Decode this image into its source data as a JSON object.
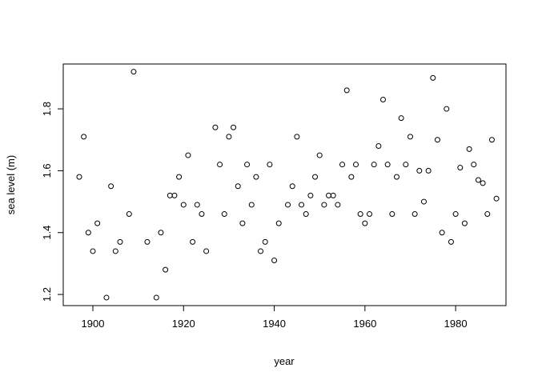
{
  "chart_data": {
    "type": "scatter",
    "x_label": "year",
    "y_label": "sea level (m)",
    "x": [
      1897,
      1898,
      1899,
      1900,
      1901,
      1903,
      1904,
      1905,
      1906,
      1908,
      1909,
      1912,
      1914,
      1915,
      1916,
      1917,
      1918,
      1919,
      1920,
      1921,
      1922,
      1923,
      1924,
      1925,
      1927,
      1928,
      1929,
      1930,
      1931,
      1932,
      1933,
      1934,
      1935,
      1936,
      1937,
      1938,
      1939,
      1940,
      1941,
      1943,
      1944,
      1945,
      1946,
      1947,
      1948,
      1949,
      1950,
      1951,
      1952,
      1953,
      1954,
      1955,
      1956,
      1957,
      1958,
      1959,
      1960,
      1961,
      1962,
      1963,
      1964,
      1965,
      1966,
      1967,
      1968,
      1969,
      1970,
      1971,
      1972,
      1973,
      1974,
      1975,
      1976,
      1977,
      1978,
      1979,
      1980,
      1981,
      1982,
      1983,
      1984,
      1985,
      1986,
      1987,
      1988,
      1989
    ],
    "values": [
      1.58,
      1.71,
      1.4,
      1.34,
      1.43,
      1.19,
      1.55,
      1.34,
      1.37,
      1.46,
      1.92,
      1.37,
      1.19,
      1.4,
      1.28,
      1.52,
      1.52,
      1.58,
      1.49,
      1.65,
      1.37,
      1.49,
      1.46,
      1.34,
      1.74,
      1.62,
      1.46,
      1.71,
      1.74,
      1.55,
      1.43,
      1.62,
      1.49,
      1.58,
      1.34,
      1.37,
      1.62,
      1.31,
      1.43,
      1.49,
      1.55,
      1.71,
      1.49,
      1.46,
      1.52,
      1.58,
      1.65,
      1.49,
      1.52,
      1.52,
      1.49,
      1.62,
      1.86,
      1.58,
      1.62,
      1.46,
      1.43,
      1.46,
      1.62,
      1.68,
      1.83,
      1.62,
      1.46,
      1.58,
      1.77,
      1.62,
      1.71,
      1.46,
      1.6,
      1.5,
      1.6,
      1.9,
      1.7,
      1.4,
      1.8,
      1.37,
      1.46,
      1.61,
      1.43,
      1.67,
      1.62,
      1.57,
      1.56,
      1.46,
      1.7,
      1.51
    ],
    "color": "#000000",
    "xlim": [
      1893.47,
      1991.1
    ],
    "ylim": [
      1.164,
      1.945
    ],
    "xticks": [
      1900,
      1920,
      1940,
      1960,
      1980
    ],
    "yticks": [
      1.2,
      1.4,
      1.6,
      1.8
    ]
  }
}
